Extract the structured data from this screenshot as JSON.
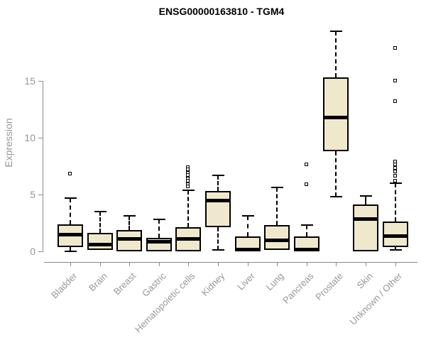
{
  "title": "ENSG00000163810 - TGM4",
  "axes": {
    "y_label": "Expression",
    "y_ticks": [
      0,
      5,
      10,
      15
    ]
  },
  "colors": {
    "box_fill": "#F0E8CC",
    "box_stroke": "#000000",
    "axis_line": "#8a8a8a",
    "tick_text": "#979797",
    "title_text": "#000000"
  },
  "chart_data": {
    "type": "boxplot",
    "title": "ENSG00000163810 - TGM4",
    "xlabel": "",
    "ylabel": "Expression",
    "ylim": [
      0,
      19.5
    ],
    "yticks": [
      0,
      5,
      10,
      15
    ],
    "grid": false,
    "legend": "none",
    "categories": [
      "Bladder",
      "Brain",
      "Breast",
      "Gastric",
      "Hematopoietic cells",
      "Kidney",
      "Liver",
      "Lung",
      "Pancreas",
      "Prostate",
      "Skin",
      "Unknown / Other"
    ],
    "series": [
      {
        "name": "Bladder",
        "low": 0.0,
        "q1": 0.4,
        "median": 1.5,
        "q3": 2.4,
        "high": 4.7,
        "outliers": [
          6.8
        ]
      },
      {
        "name": "Brain",
        "low": 0.0,
        "q1": 0.1,
        "median": 0.6,
        "q3": 1.6,
        "high": 3.5,
        "outliers": []
      },
      {
        "name": "Breast",
        "low": 0.0,
        "q1": 0.0,
        "median": 1.1,
        "q3": 1.9,
        "high": 3.1,
        "outliers": []
      },
      {
        "name": "Gastric",
        "low": 0.0,
        "q1": 0.0,
        "median": 0.9,
        "q3": 1.2,
        "high": 2.8,
        "outliers": []
      },
      {
        "name": "Hematopoietic cells",
        "low": 0.0,
        "q1": 0.0,
        "median": 1.1,
        "q3": 2.1,
        "high": 5.4,
        "outliers": [
          7.4,
          7.2,
          6.9,
          6.7,
          6.4,
          6.2,
          5.9,
          5.7
        ]
      },
      {
        "name": "Kidney",
        "low": 0.1,
        "q1": 2.1,
        "median": 4.5,
        "q3": 5.3,
        "high": 6.7,
        "outliers": []
      },
      {
        "name": "Liver",
        "low": 0.0,
        "q1": 0.0,
        "median": 0.2,
        "q3": 1.3,
        "high": 3.1,
        "outliers": []
      },
      {
        "name": "Lung",
        "low": 0.0,
        "q1": 0.1,
        "median": 1.0,
        "q3": 2.3,
        "high": 5.6,
        "outliers": []
      },
      {
        "name": "Pancreas",
        "low": 0.0,
        "q1": 0.0,
        "median": 0.2,
        "q3": 1.3,
        "high": 2.3,
        "outliers": [
          7.6,
          5.9
        ]
      },
      {
        "name": "Prostate",
        "low": 4.8,
        "q1": 8.8,
        "median": 11.8,
        "q3": 15.3,
        "high": 19.4,
        "outliers": []
      },
      {
        "name": "Skin",
        "low": 0.0,
        "q1": 0.0,
        "median": 2.9,
        "q3": 4.1,
        "high": 4.9,
        "outliers": []
      },
      {
        "name": "Unknown / Other",
        "low": 0.1,
        "q1": 0.4,
        "median": 1.4,
        "q3": 2.6,
        "high": 6.0,
        "outliers": [
          17.9,
          15.0,
          13.2,
          7.9,
          7.6,
          7.3,
          7.0,
          6.6,
          6.2
        ]
      }
    ]
  }
}
